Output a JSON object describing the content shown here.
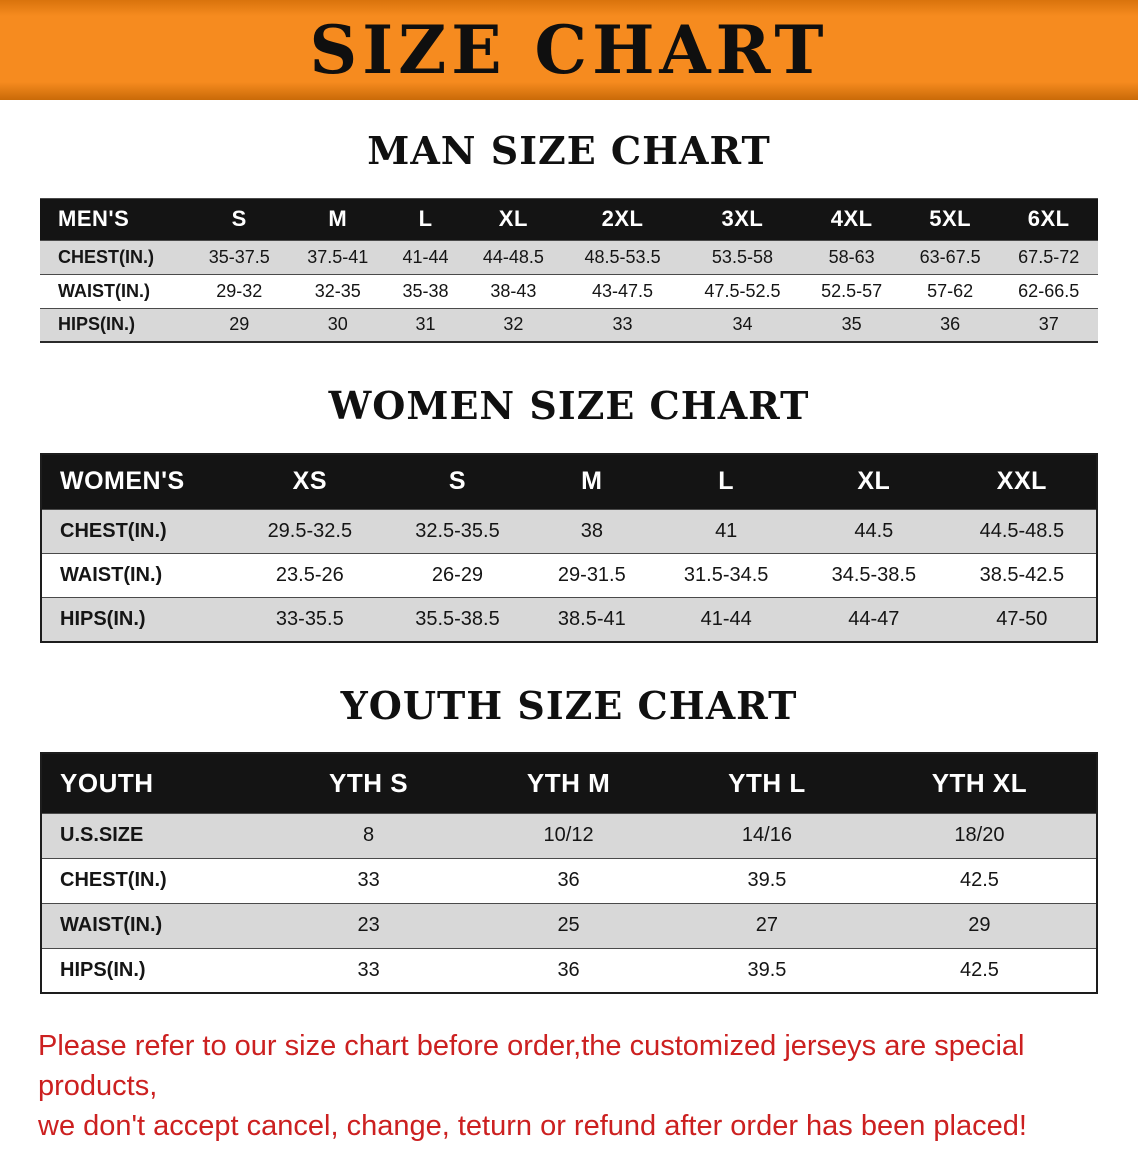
{
  "banner": {
    "title": "SIZE CHART"
  },
  "sections": [
    {
      "heading": "MAN SIZE CHART",
      "table": {
        "header": [
          "MEN'S",
          "S",
          "M",
          "L",
          "XL",
          "2XL",
          "3XL",
          "4XL",
          "5XL",
          "6XL"
        ],
        "rows": [
          [
            "CHEST(IN.)",
            "35-37.5",
            "37.5-41",
            "41-44",
            "44-48.5",
            "48.5-53.5",
            "53.5-58",
            "58-63",
            "63-67.5",
            "67.5-72"
          ],
          [
            "WAIST(IN.)",
            "29-32",
            "32-35",
            "35-38",
            "38-43",
            "43-47.5",
            "47.5-52.5",
            "52.5-57",
            "57-62",
            "62-66.5"
          ],
          [
            "HIPS(IN.)",
            "29",
            "30",
            "31",
            "32",
            "33",
            "34",
            "35",
            "36",
            "37"
          ]
        ]
      }
    },
    {
      "heading": "WOMEN SIZE CHART",
      "table": {
        "header": [
          "WOMEN'S",
          "XS",
          "S",
          "M",
          "L",
          "XL",
          "XXL"
        ],
        "rows": [
          [
            "CHEST(IN.)",
            "29.5-32.5",
            "32.5-35.5",
            "38",
            "41",
            "44.5",
            "44.5-48.5"
          ],
          [
            "WAIST(IN.)",
            "23.5-26",
            "26-29",
            "29-31.5",
            "31.5-34.5",
            "34.5-38.5",
            "38.5-42.5"
          ],
          [
            "HIPS(IN.)",
            "33-35.5",
            "35.5-38.5",
            "38.5-41",
            "41-44",
            "44-47",
            "47-50"
          ]
        ]
      }
    },
    {
      "heading": "YOUTH SIZE CHART",
      "table": {
        "header": [
          "YOUTH",
          "YTH S",
          "YTH M",
          "YTH L",
          "YTH XL"
        ],
        "rows": [
          [
            "U.S.SIZE",
            "8",
            "10/12",
            "14/16",
            "18/20"
          ],
          [
            "CHEST(IN.)",
            "33",
            "36",
            "39.5",
            "42.5"
          ],
          [
            "WAIST(IN.)",
            "23",
            "25",
            "27",
            "29"
          ],
          [
            "HIPS(IN.)",
            "33",
            "36",
            "39.5",
            "42.5"
          ]
        ]
      }
    }
  ],
  "disclaimer": {
    "lines": [
      "Please refer to our size chart before order,the customized jerseys are special products,",
      "we don't accept cancel, change, teturn or refund after order has been placed!"
    ]
  },
  "appearance": {
    "banner_bg": "#f68b1f",
    "table_header_bg": "#141414",
    "row_alt_bg": "#d8d8d8",
    "disclaimer_color": "#cc2020"
  }
}
